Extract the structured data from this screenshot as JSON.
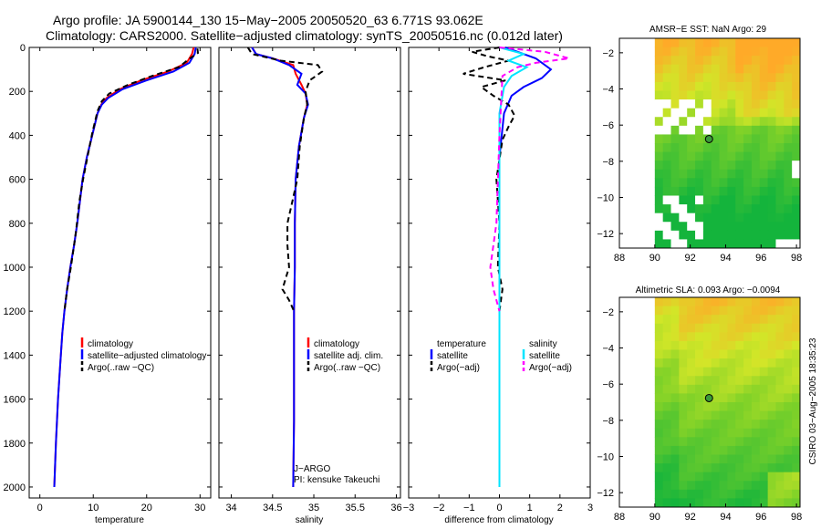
{
  "title": {
    "line1": "Argo profile: JA 5900144_130 15−May−2005 20050520_63 6.771S 93.062E",
    "line2": "Climatology: CARS2000. Satellite−adjusted climatology: synTS_20050516.nc (0.012d later)"
  },
  "colors": {
    "climatology": "#ff0000",
    "satellite": "#0000ff",
    "argo": "#000000",
    "salinity_sat": "#00e5ff",
    "salinity_argo": "#ff00ff"
  },
  "side_label": "CSIRO 03−Aug−2005 18:35:23",
  "credits": {
    "line1": "J−ARGO",
    "line2": "PI: kensuke Takeuchi"
  },
  "chart_data": [
    {
      "type": "line",
      "id": "temperature",
      "xlabel": "temperature",
      "ylabel": "",
      "xlim": [
        -2,
        32
      ],
      "ylim": [
        0,
        2050
      ],
      "xticks": [
        0,
        10,
        20,
        30
      ],
      "yticks": [
        0,
        200,
        400,
        600,
        800,
        1000,
        1200,
        1400,
        1600,
        1800,
        2000
      ],
      "legend": [
        "climatology",
        "satellite−adjusted climatology",
        "Argo(..raw −QC)"
      ],
      "series": [
        {
          "name": "climatology",
          "style": "solid",
          "color": "#ff0000",
          "x": [
            28.8,
            28.5,
            27.5,
            24,
            19,
            15,
            12.5,
            11.5,
            10.8,
            9.8,
            8.8,
            8,
            7.5,
            7,
            6.4,
            5.7,
            5.1,
            4.6,
            4.2,
            3.8,
            3.4,
            3,
            2.7
          ],
          "y": [
            0,
            30,
            70,
            110,
            150,
            190,
            230,
            260,
            300,
            400,
            500,
            600,
            700,
            800,
            900,
            1000,
            1100,
            1200,
            1300,
            1450,
            1600,
            1800,
            2000
          ]
        },
        {
          "name": "satellite−adjusted climatology",
          "style": "solid",
          "color": "#0000ff",
          "x": [
            29.2,
            29,
            28,
            25,
            20,
            15.5,
            12.8,
            11.6,
            10.8,
            9.8,
            8.8,
            8,
            7.5,
            7,
            6.4,
            5.7,
            5.1,
            4.6,
            4.2,
            3.8,
            3.4,
            3,
            2.7
          ],
          "y": [
            0,
            30,
            70,
            110,
            150,
            190,
            230,
            260,
            300,
            400,
            500,
            600,
            700,
            800,
            900,
            1000,
            1100,
            1200,
            1300,
            1450,
            1600,
            1800,
            2000
          ]
        },
        {
          "name": "Argo(..raw −QC)",
          "style": "dashed",
          "color": "#000000",
          "x": [
            29.5,
            29.6,
            27.8,
            26,
            21,
            16.5,
            13,
            11.6,
            10.8,
            9.8,
            8.9,
            8.1,
            7.4,
            6.8,
            6.4,
            5.8,
            5.1,
            4.6
          ],
          "y": [
            5,
            25,
            55,
            90,
            130,
            170,
            210,
            245,
            290,
            390,
            500,
            600,
            700,
            830,
            900,
            1000,
            1100,
            1200
          ]
        }
      ]
    },
    {
      "type": "line",
      "id": "salinity",
      "xlabel": "salinity",
      "ylabel": "",
      "xlim": [
        33.85,
        36.05
      ],
      "ylim": [
        0,
        2050
      ],
      "xticks": [
        34,
        34.5,
        35,
        35.5,
        36
      ],
      "legend": [
        "climatology",
        "satellite adj. clim.",
        "Argo(..raw −QC)"
      ],
      "series": [
        {
          "name": "climatology",
          "style": "solid",
          "color": "#ff0000",
          "x": [
            34.25,
            34.3,
            34.5,
            34.75,
            34.78,
            34.85,
            34.9,
            34.92,
            34.88,
            34.82,
            34.78,
            34.77,
            34.77,
            34.76,
            34.76,
            34.76,
            34.75
          ],
          "y": [
            0,
            30,
            50,
            80,
            120,
            170,
            210,
            260,
            320,
            450,
            600,
            800,
            1000,
            1200,
            1400,
            1700,
            2000
          ]
        },
        {
          "name": "satellite adj. clim.",
          "style": "solid",
          "color": "#0000ff",
          "x": [
            34.25,
            34.3,
            34.5,
            34.7,
            34.85,
            34.8,
            34.9,
            34.93,
            34.88,
            34.82,
            34.78,
            34.77,
            34.77,
            34.76,
            34.76,
            34.76,
            34.75
          ],
          "y": [
            0,
            30,
            50,
            80,
            120,
            170,
            210,
            260,
            320,
            450,
            600,
            800,
            1000,
            1200,
            1400,
            1700,
            2000
          ]
        },
        {
          "name": "Argo(..raw −QC)",
          "style": "dashed",
          "color": "#000000",
          "x": [
            34.2,
            34.25,
            34.6,
            35.05,
            35.1,
            34.95,
            34.9,
            34.92,
            34.88,
            34.83,
            34.8,
            34.68,
            34.68,
            34.7,
            34.62,
            34.7,
            34.76
          ],
          "y": [
            0,
            30,
            60,
            80,
            110,
            150,
            200,
            260,
            320,
            450,
            600,
            800,
            900,
            1000,
            1100,
            1150,
            1200
          ]
        }
      ]
    },
    {
      "type": "line",
      "id": "difference",
      "xlabel": "difference from climatology",
      "ylabel": "",
      "xlim": [
        -3,
        3
      ],
      "ylim": [
        0,
        2050
      ],
      "xticks": [
        -3,
        -2,
        -1,
        0,
        1,
        2,
        3
      ],
      "legend_left": [
        "temperature",
        "satellite",
        "Argo(−adj)"
      ],
      "legend_right": [
        "salinity",
        "satellite",
        "Argo(−adj)"
      ],
      "series": [
        {
          "name": "temperature satellite",
          "style": "solid",
          "color": "#0000ff",
          "x": [
            0.2,
            0.6,
            1.2,
            1.7,
            1.4,
            0.8,
            0.4,
            0.15,
            0,
            0,
            0
          ],
          "y": [
            0,
            20,
            50,
            100,
            140,
            180,
            220,
            300,
            500,
            1000,
            2000
          ]
        },
        {
          "name": "temperature Argo(−adj)",
          "style": "dashed",
          "color": "#000000",
          "x": [
            0,
            -0.9,
            -0.4,
            0.3,
            -0.5,
            -1.2,
            0.2,
            -0.6,
            -0.2,
            0.3,
            0.5,
            0.3,
            0.1,
            -0.1,
            0,
            -0.05,
            0.1,
            0
          ],
          "y": [
            0,
            20,
            40,
            60,
            90,
            120,
            150,
            180,
            220,
            260,
            310,
            360,
            420,
            600,
            800,
            1000,
            1100,
            1200
          ]
        },
        {
          "name": "salinity satellite",
          "style": "solid",
          "color": "#00e5ff",
          "x": [
            0,
            0.8,
            0.3,
            0.9,
            0.4,
            0.15,
            0,
            0,
            0
          ],
          "y": [
            0,
            30,
            60,
            90,
            130,
            180,
            300,
            1000,
            2000
          ]
        },
        {
          "name": "salinity Argo(−adj)",
          "style": "dashed",
          "color": "#ff00ff",
          "x": [
            0,
            1.5,
            2.3,
            1.2,
            0.6,
            0.1,
            0,
            -0.1,
            -0.3,
            -0.2,
            -0.1,
            0
          ],
          "y": [
            0,
            20,
            50,
            70,
            90,
            130,
            400,
            800,
            1000,
            1100,
            1150,
            1200
          ]
        }
      ]
    },
    {
      "type": "heatmap",
      "id": "sst_map",
      "title": "AMSR−E SST: NaN Argo: 29",
      "xlim": [
        88,
        98.2
      ],
      "ylim": [
        -12.8,
        -1.2
      ],
      "xticks": [
        88,
        90,
        92,
        94,
        96,
        98
      ],
      "yticks": [
        -2,
        -4,
        -6,
        -8,
        -10,
        -12
      ],
      "data_extent_x": [
        90,
        98.2
      ],
      "marker": {
        "lon": 93.062,
        "lat": -6.771
      }
    },
    {
      "type": "heatmap",
      "id": "sla_map",
      "title": "Altimetric SLA: 0.093 Argo: −0.0094",
      "xlim": [
        88,
        98.2
      ],
      "ylim": [
        -12.8,
        -1.2
      ],
      "xticks": [
        88,
        90,
        92,
        94,
        96,
        98
      ],
      "yticks": [
        -2,
        -4,
        -6,
        -8,
        -10,
        -12
      ],
      "data_extent_x": [
        90,
        98.2
      ],
      "marker": {
        "lon": 93.062,
        "lat": -6.771
      }
    }
  ]
}
